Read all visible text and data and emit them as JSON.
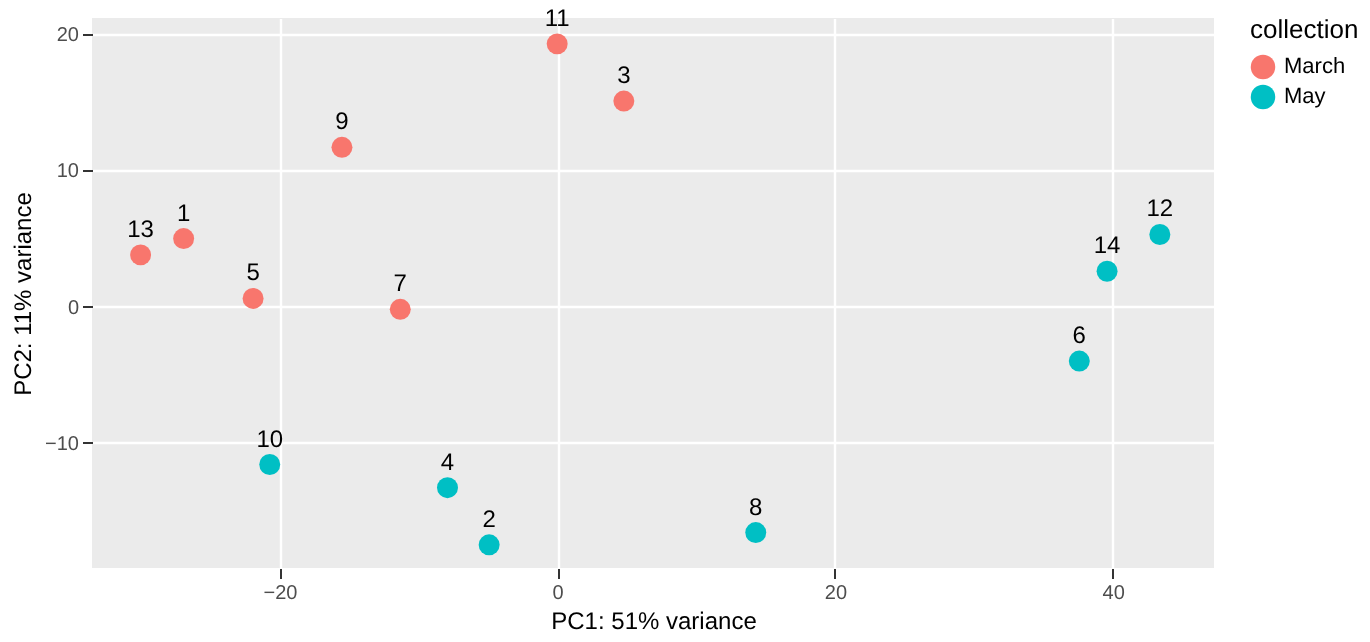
{
  "chart_data": {
    "type": "scatter",
    "xlabel": "PC1: 51% variance",
    "ylabel": "PC2: 11% variance",
    "legend_title": "collection",
    "legend": "right",
    "grid": true,
    "marker": "circle",
    "xlim": [
      -33.5,
      47.3
    ],
    "ylim": [
      -19.2,
      21.2
    ],
    "xticks": [
      -20,
      0,
      20,
      40
    ],
    "yticks": [
      -10,
      0,
      10,
      20
    ],
    "series": [
      {
        "name": "March",
        "color": "#f8766d",
        "x": [
          0,
          4.8,
          -15.5,
          -26.9,
          -30.0,
          -21.9,
          -11.3
        ],
        "values": [
          19.3,
          15.1,
          11.7,
          5.0,
          3.8,
          0.6,
          -0.2
        ]
      },
      {
        "name": "May",
        "color": "#00bfc4",
        "x": [
          -20.7,
          -7.9,
          -4.9,
          14.3,
          37.6,
          39.6,
          43.4
        ],
        "values": [
          -11.6,
          -13.3,
          -17.5,
          -16.6,
          -4.0,
          2.6,
          5.3
        ]
      }
    ],
    "annotations": [
      {
        "text": "11",
        "x": 0,
        "y": 19.3
      },
      {
        "text": "3",
        "x": 4.8,
        "y": 15.1
      },
      {
        "text": "9",
        "x": -15.5,
        "y": 11.7
      },
      {
        "text": "1",
        "x": -26.9,
        "y": 5.0
      },
      {
        "text": "13",
        "x": -30.0,
        "y": 3.8
      },
      {
        "text": "5",
        "x": -21.9,
        "y": 0.6
      },
      {
        "text": "7",
        "x": -11.3,
        "y": -0.2
      },
      {
        "text": "10",
        "x": -20.7,
        "y": -11.6
      },
      {
        "text": "4",
        "x": -7.9,
        "y": -13.3
      },
      {
        "text": "2",
        "x": -4.9,
        "y": -17.5
      },
      {
        "text": "8",
        "x": 14.3,
        "y": -16.6
      },
      {
        "text": "6",
        "x": 37.6,
        "y": -4.0
      },
      {
        "text": "14",
        "x": 39.6,
        "y": 2.6
      },
      {
        "text": "12",
        "x": 43.4,
        "y": 5.3
      }
    ]
  }
}
